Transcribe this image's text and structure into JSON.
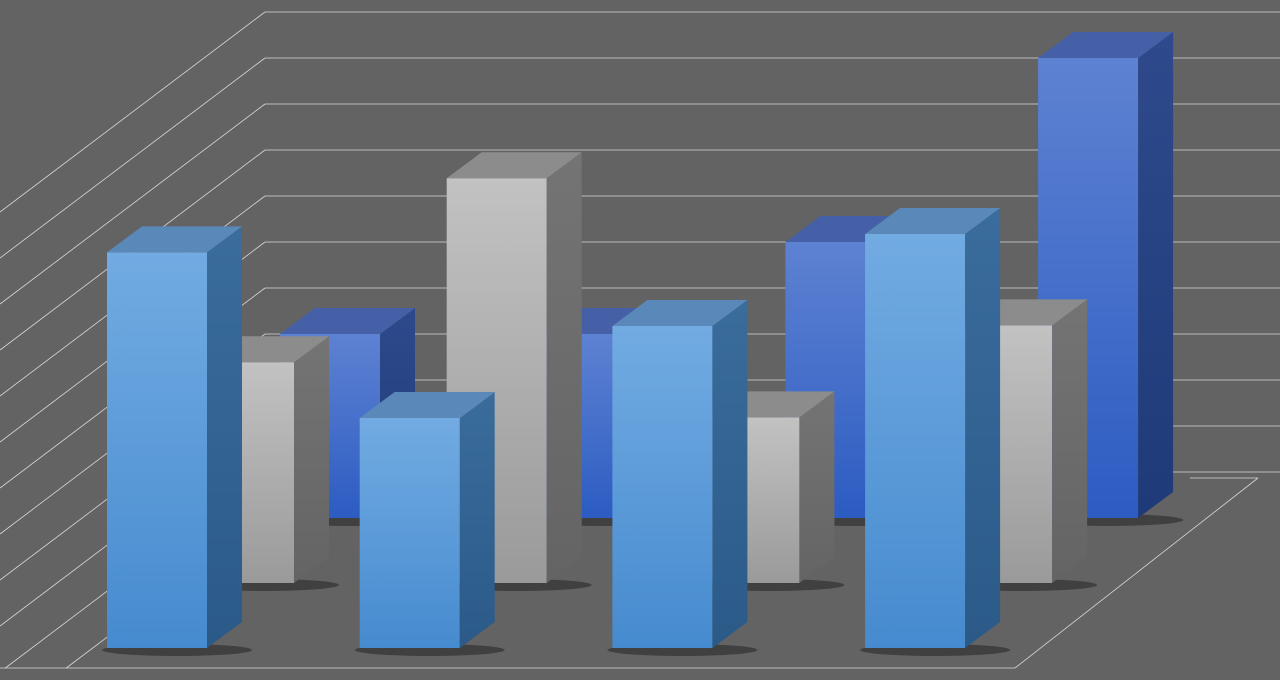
{
  "chart_data": {
    "type": "bar",
    "style": "3d-grouped-depth",
    "title": "",
    "xlabel": "",
    "ylabel": "",
    "categories": [
      "",
      "",
      "",
      ""
    ],
    "ylim": [
      0,
      11
    ],
    "grid": true,
    "legend": "none",
    "series": [
      {
        "values": [
          4,
          4,
          6,
          10
        ],
        "color": "#3a64c8",
        "row": "back"
      },
      {
        "values": [
          4.8,
          8.8,
          3.6,
          5.6
        ],
        "color": "#b0b0b0",
        "row": "middle"
      },
      {
        "values": [
          8.6,
          5,
          7,
          9
        ],
        "color": "#5a9ad8",
        "row": "front"
      }
    ]
  },
  "colors": {
    "background": "#636363",
    "grid": "#d8d8d8"
  }
}
